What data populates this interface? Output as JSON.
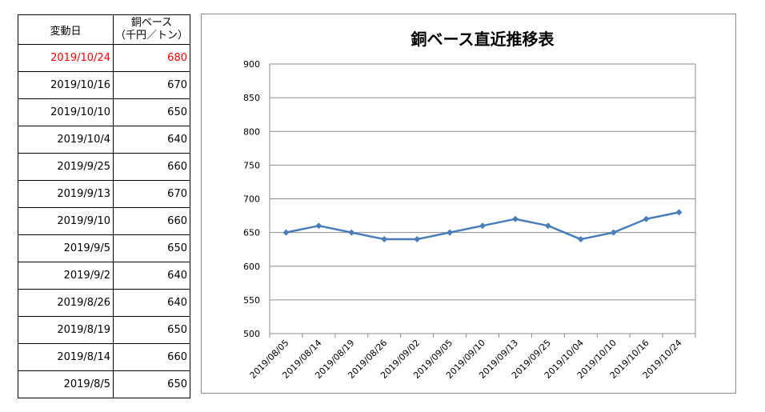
{
  "table": {
    "header": {
      "date": "変動日",
      "price_line1": "銅ベース",
      "price_line2": "（千円／トン）"
    },
    "rows": [
      {
        "date": "2019/10/24",
        "value": "680"
      },
      {
        "date": "2019/10/16",
        "value": "670"
      },
      {
        "date": "2019/10/10",
        "value": "650"
      },
      {
        "date": "2019/10/4",
        "value": "640"
      },
      {
        "date": "2019/9/25",
        "value": "660"
      },
      {
        "date": "2019/9/13",
        "value": "670"
      },
      {
        "date": "2019/9/10",
        "value": "660"
      },
      {
        "date": "2019/9/5",
        "value": "650"
      },
      {
        "date": "2019/9/2",
        "value": "640"
      },
      {
        "date": "2019/8/26",
        "value": "640"
      },
      {
        "date": "2019/8/19",
        "value": "650"
      },
      {
        "date": "2019/8/14",
        "value": "660"
      },
      {
        "date": "2019/8/5",
        "value": "650"
      }
    ]
  },
  "colors": {
    "latest_row": "#ff0000",
    "series": "#4a7ebb",
    "grid": "#8c8c8c"
  },
  "chart_data": {
    "type": "line",
    "title": "銅ベース直近推移表",
    "categories": [
      "2019/08/05",
      "2019/08/14",
      "2019/08/19",
      "2019/08/26",
      "2019/09/02",
      "2019/09/05",
      "2019/09/10",
      "2019/09/13",
      "2019/09/25",
      "2019/10/04",
      "2019/10/10",
      "2019/10/16",
      "2019/10/24"
    ],
    "values": [
      650,
      660,
      650,
      640,
      640,
      650,
      660,
      670,
      660,
      640,
      650,
      670,
      680
    ],
    "ylim": [
      500,
      900
    ],
    "yticks": [
      500,
      550,
      600,
      650,
      700,
      750,
      800,
      850,
      900
    ],
    "marker": "diamond",
    "grid": true,
    "legend": "none"
  }
}
